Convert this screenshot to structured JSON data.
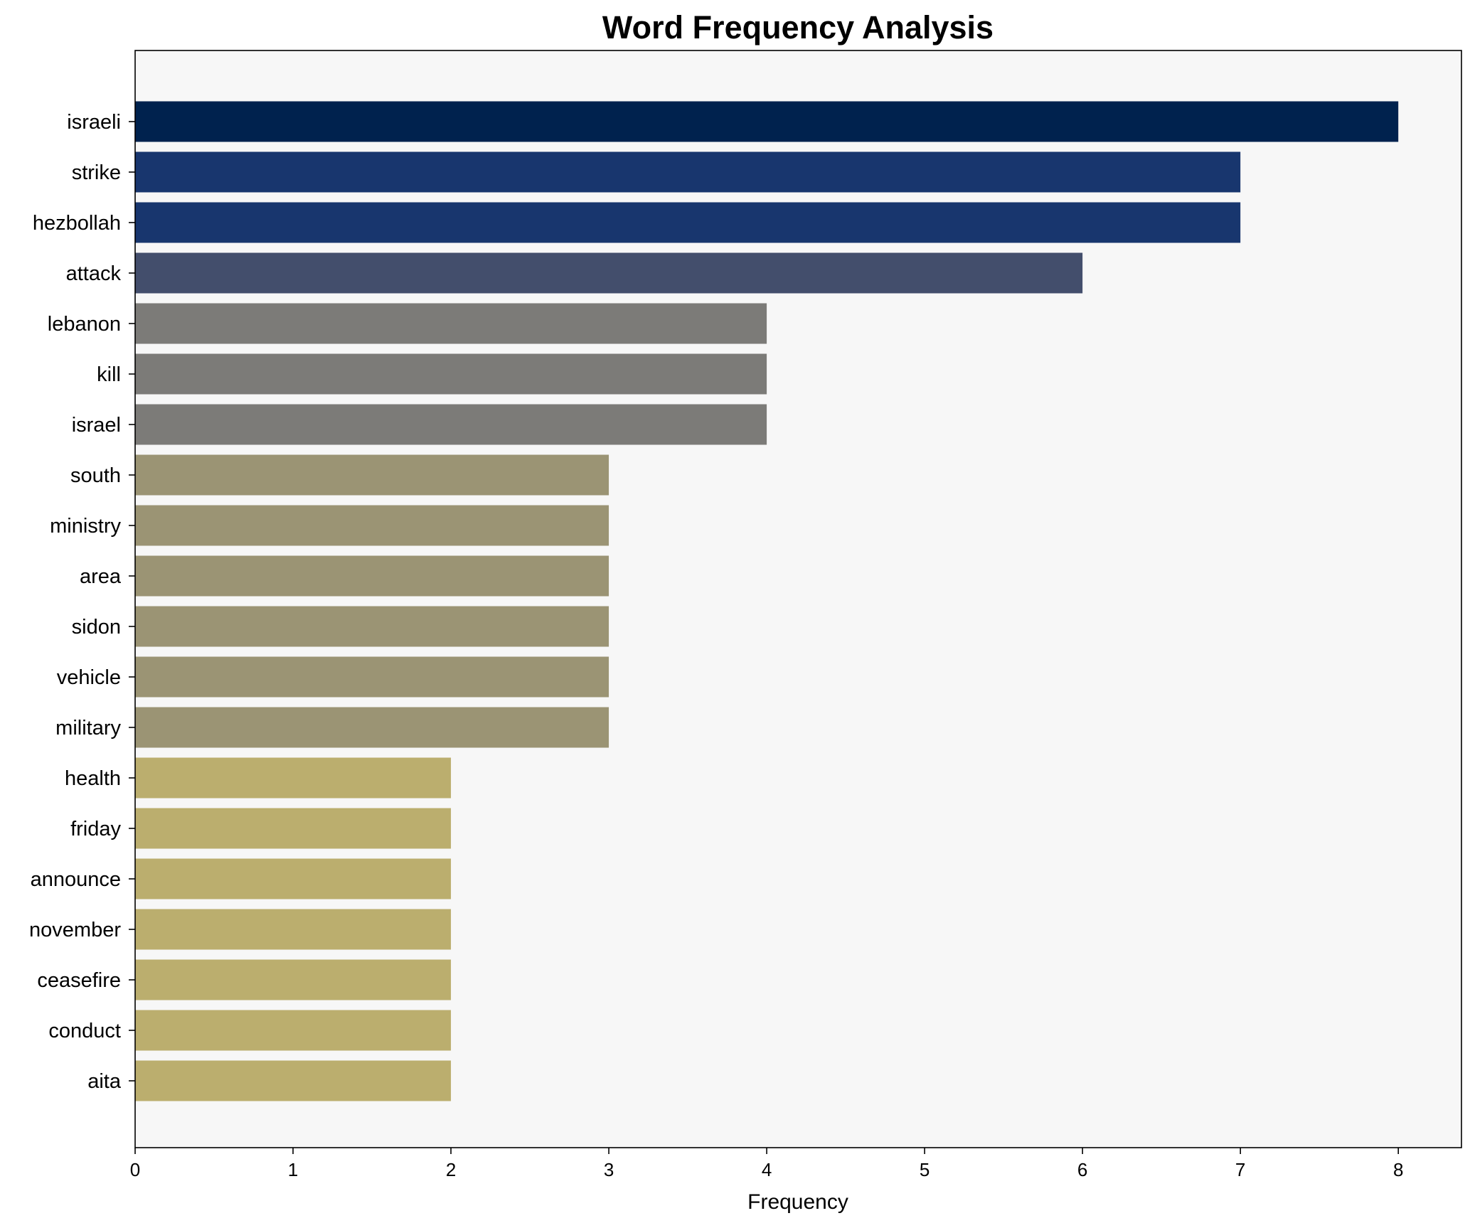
{
  "chart_data": {
    "type": "bar",
    "orientation": "horizontal",
    "title": "Word Frequency Analysis",
    "xlabel": "Frequency",
    "ylabel": "",
    "xlim": [
      0,
      8.4
    ],
    "xticks": [
      0,
      1,
      2,
      3,
      4,
      5,
      6,
      7,
      8
    ],
    "grid": false,
    "plot_background": "#f7f7f7",
    "categories": [
      "israeli",
      "strike",
      "hezbollah",
      "attack",
      "lebanon",
      "kill",
      "israel",
      "south",
      "ministry",
      "area",
      "sidon",
      "vehicle",
      "military",
      "health",
      "friday",
      "announce",
      "november",
      "ceasefire",
      "conduct",
      "aita"
    ],
    "values": [
      8,
      7,
      7,
      6,
      4,
      4,
      4,
      3,
      3,
      3,
      3,
      3,
      3,
      2,
      2,
      2,
      2,
      2,
      2,
      2
    ],
    "colors": [
      "#00224e",
      "#18366e",
      "#18366e",
      "#434e6c",
      "#7c7b78",
      "#7c7b78",
      "#7c7b78",
      "#9b9474",
      "#9b9474",
      "#9b9474",
      "#9b9474",
      "#9b9474",
      "#9b9474",
      "#bbae6e",
      "#bbae6e",
      "#bbae6e",
      "#bbae6e",
      "#bbae6e",
      "#bbae6e",
      "#bbae6e"
    ]
  }
}
